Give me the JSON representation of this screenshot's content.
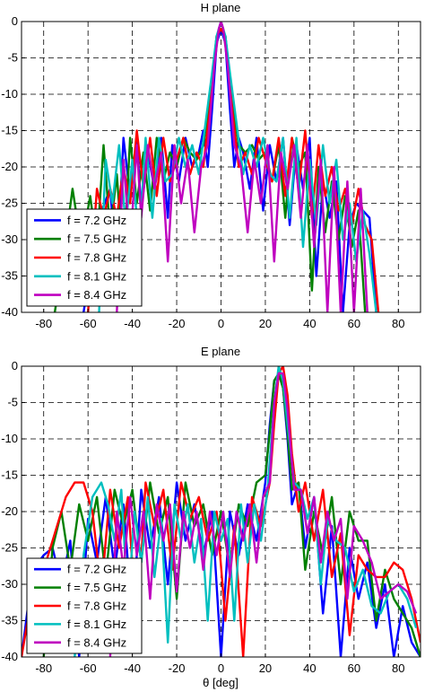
{
  "chart_data": [
    {
      "type": "line",
      "title": "H plane",
      "xlabel": "",
      "ylabel": "",
      "xlim": [
        -90,
        90
      ],
      "ylim": [
        -40,
        0
      ],
      "x_ticks": [
        -80,
        -60,
        -40,
        -20,
        0,
        20,
        40,
        60,
        80
      ],
      "x_tick_labels": [
        "-80",
        "-60",
        "-40",
        "-20",
        "0",
        "20",
        "40",
        "60",
        "80"
      ],
      "y_ticks": [
        0,
        -5,
        -10,
        -15,
        -20,
        -25,
        -30,
        -35,
        -40
      ],
      "y_tick_labels": [
        "0",
        "-5",
        "-10",
        "-15",
        "-20",
        "-25",
        "-30",
        "-35",
        "-40"
      ],
      "grid": true,
      "legend_position": "bottom-left",
      "series": [
        {
          "name": "f = 7.2 GHz",
          "color": "#0000ff",
          "x": [
            -62,
            -55,
            -50,
            -47,
            -44,
            -41,
            -38,
            -36,
            -33,
            -30,
            -27,
            -24,
            -22,
            -19,
            -16,
            -13,
            -10,
            -8,
            -6,
            -4,
            -2,
            0,
            2,
            4,
            6,
            8,
            10,
            13,
            16,
            19,
            22,
            25,
            28,
            31,
            34,
            37,
            40,
            43,
            46,
            49,
            52,
            55,
            58,
            61,
            64,
            67,
            70
          ],
          "y": [
            -40,
            -27,
            -23,
            -35,
            -16,
            -24,
            -16,
            -26,
            -18,
            -23,
            -16,
            -27,
            -17,
            -22,
            -16,
            -20,
            -18,
            -15,
            -20,
            -12,
            -3,
            -1,
            -3,
            -12,
            -20,
            -16,
            -18,
            -23,
            -16,
            -26,
            -17,
            -22,
            -16,
            -28,
            -17,
            -23,
            -16,
            -35,
            -22,
            -27,
            -22,
            -40,
            -28,
            -25,
            -26,
            -27,
            -40
          ]
        },
        {
          "name": "f = 7.5 GHz",
          "color": "#008000",
          "x": [
            -75,
            -70,
            -67,
            -63,
            -59,
            -56,
            -53,
            -50,
            -47,
            -44,
            -41,
            -38,
            -35,
            -32,
            -29,
            -26,
            -23,
            -20,
            -17,
            -14,
            -11,
            -8,
            -5,
            -2,
            0,
            2,
            5,
            8,
            11,
            14,
            17,
            20,
            23,
            26,
            29,
            32,
            35,
            38,
            41,
            44,
            47,
            50,
            53,
            56,
            59,
            62,
            65
          ],
          "y": [
            -40,
            -30,
            -23,
            -31,
            -24,
            -31,
            -17,
            -29,
            -21,
            -34,
            -16,
            -25,
            -18,
            -26,
            -16,
            -22,
            -18,
            -20,
            -16,
            -18,
            -19,
            -17,
            -11,
            -2,
            -1,
            -2,
            -11,
            -17,
            -18,
            -17,
            -19,
            -18,
            -22,
            -17,
            -27,
            -16,
            -20,
            -18,
            -37,
            -20,
            -29,
            -22,
            -30,
            -24,
            -31,
            -26,
            -40
          ]
        },
        {
          "name": "f = 7.8 GHz",
          "color": "#ff0000",
          "x": [
            -60,
            -56,
            -53,
            -50,
            -47,
            -44,
            -41,
            -38,
            -35,
            -32,
            -29,
            -26,
            -23,
            -20,
            -17,
            -14,
            -11,
            -8,
            -5,
            -2,
            0,
            2,
            5,
            8,
            11,
            14,
            17,
            20,
            23,
            26,
            29,
            32,
            35,
            38,
            41,
            44,
            47,
            50,
            53,
            56,
            59,
            62,
            65,
            68,
            71
          ],
          "y": [
            -40,
            -23,
            -27,
            -23,
            -27,
            -20,
            -25,
            -15,
            -23,
            -16,
            -24,
            -16,
            -22,
            -19,
            -16,
            -21,
            -18,
            -20,
            -12,
            -2,
            -1,
            -2,
            -12,
            -20,
            -18,
            -21,
            -16,
            -19,
            -22,
            -16,
            -24,
            -16,
            -23,
            -15,
            -27,
            -17,
            -24,
            -20,
            -26,
            -23,
            -28,
            -23,
            -28,
            -30,
            -40
          ]
        },
        {
          "name": "f = 8.1 GHz",
          "color": "#00bfbf",
          "x": [
            -55,
            -52,
            -49,
            -46,
            -43,
            -40,
            -37,
            -34,
            -31,
            -28,
            -25,
            -22,
            -19,
            -16,
            -13,
            -10,
            -7,
            -4,
            -2,
            0,
            2,
            4,
            7,
            10,
            13,
            16,
            19,
            22,
            25,
            28,
            31,
            34,
            37,
            40,
            43,
            46,
            49,
            52,
            55,
            58,
            61,
            64,
            67,
            70
          ],
          "y": [
            -40,
            -19,
            -25,
            -17,
            -28,
            -19,
            -31,
            -16,
            -27,
            -16,
            -22,
            -21,
            -16,
            -20,
            -17,
            -21,
            -14,
            -7,
            -2,
            0,
            -2,
            -7,
            -14,
            -21,
            -17,
            -20,
            -16,
            -21,
            -22,
            -16,
            -27,
            -16,
            -31,
            -19,
            -28,
            -17,
            -25,
            -19,
            -30,
            -25,
            -33,
            -26,
            -32,
            -40
          ]
        },
        {
          "name": "f = 8.4 GHz",
          "color": "#bf00bf",
          "x": [
            -47,
            -44,
            -41,
            -38,
            -36,
            -33,
            -30,
            -27,
            -24,
            -21,
            -18,
            -15,
            -12,
            -9,
            -6,
            -3,
            -1,
            0,
            1,
            3,
            6,
            9,
            12,
            15,
            18,
            21,
            24,
            27,
            30,
            33,
            36,
            39,
            42,
            45,
            48,
            51,
            54,
            57,
            60,
            63,
            66
          ],
          "y": [
            -40,
            -19,
            -31,
            -17,
            -27,
            -17,
            -23,
            -18,
            -33,
            -17,
            -25,
            -19,
            -29,
            -20,
            -17,
            -6,
            -1,
            0,
            -1,
            -6,
            -17,
            -20,
            -29,
            -19,
            -25,
            -17,
            -33,
            -18,
            -23,
            -17,
            -27,
            -17,
            -31,
            -19,
            -40,
            -20,
            -40,
            -22,
            -40,
            -23,
            -40
          ]
        }
      ]
    },
    {
      "type": "line",
      "title": "E plane",
      "xlabel": "θ [deg]",
      "ylabel": "",
      "xlim": [
        -90,
        90
      ],
      "ylim": [
        -40,
        0
      ],
      "x_ticks": [
        -80,
        -60,
        -40,
        -20,
        0,
        20,
        40,
        60,
        80
      ],
      "x_tick_labels": [
        "-80",
        "-60",
        "-40",
        "-20",
        "0",
        "20",
        "40",
        "60",
        "80"
      ],
      "y_ticks": [
        0,
        -5,
        -10,
        -15,
        -20,
        -25,
        -30,
        -35,
        -40
      ],
      "y_tick_labels": [
        "0",
        "-5",
        "-10",
        "-15",
        "-20",
        "-25",
        "-30",
        "-35",
        "-40"
      ],
      "grid": true,
      "legend_position": "bottom-left",
      "series": [
        {
          "name": "f = 7.2 GHz",
          "color": "#0000ff",
          "x": [
            -90,
            -85,
            -80,
            -76,
            -72,
            -68,
            -64,
            -60,
            -56,
            -52,
            -48,
            -44,
            -40,
            -36,
            -32,
            -28,
            -24,
            -20,
            -16,
            -12,
            -8,
            -4,
            0,
            4,
            8,
            12,
            16,
            20,
            22,
            24,
            26,
            28,
            30,
            32,
            35,
            38,
            42,
            46,
            50,
            54,
            58,
            62,
            66,
            70,
            74,
            78,
            82,
            86,
            90
          ],
          "y": [
            -40,
            -28,
            -26,
            -25,
            -30,
            -24,
            -40,
            -21,
            -27,
            -18,
            -28,
            -19,
            -35,
            -17,
            -25,
            -18,
            -30,
            -16,
            -24,
            -19,
            -26,
            -20,
            -40,
            -20,
            -26,
            -19,
            -24,
            -16,
            -8,
            -2,
            -1,
            -3,
            -10,
            -19,
            -16,
            -25,
            -18,
            -34,
            -22,
            -40,
            -25,
            -32,
            -27,
            -36,
            -30,
            -40,
            -33,
            -38,
            -40
          ]
        },
        {
          "name": "f = 7.5 GHz",
          "color": "#008000",
          "x": [
            -80,
            -76,
            -72,
            -68,
            -64,
            -60,
            -56,
            -52,
            -48,
            -44,
            -40,
            -36,
            -32,
            -28,
            -24,
            -20,
            -16,
            -12,
            -8,
            -4,
            0,
            4,
            8,
            12,
            16,
            20,
            22,
            24,
            26,
            28,
            30,
            32,
            35,
            38,
            42,
            46,
            50,
            54,
            58,
            62,
            66,
            70,
            74,
            78,
            82,
            86,
            90
          ],
          "y": [
            -40,
            -25,
            -20,
            -28,
            -19,
            -24,
            -18,
            -29,
            -17,
            -22,
            -17,
            -27,
            -16,
            -23,
            -18,
            -32,
            -16,
            -22,
            -19,
            -26,
            -20,
            -28,
            -19,
            -22,
            -16,
            -15,
            -9,
            -2,
            -1,
            -3,
            -9,
            -17,
            -16,
            -28,
            -20,
            -26,
            -18,
            -30,
            -20,
            -24,
            -24,
            -35,
            -28,
            -32,
            -34,
            -36,
            -40
          ]
        },
        {
          "name": "f = 7.8 GHz",
          "color": "#ff0000",
          "x": [
            -90,
            -85,
            -80,
            -75,
            -70,
            -66,
            -62,
            -58,
            -54,
            -50,
            -46,
            -42,
            -38,
            -34,
            -30,
            -26,
            -22,
            -18,
            -14,
            -10,
            -6,
            -2,
            2,
            6,
            10,
            14,
            18,
            22,
            24,
            26,
            28,
            30,
            32,
            35,
            38,
            42,
            46,
            50,
            54,
            58,
            62,
            66,
            70,
            74,
            78,
            82,
            86,
            90
          ],
          "y": [
            -40,
            -31,
            -28,
            -23,
            -18,
            -16,
            -16,
            -20,
            -31,
            -17,
            -25,
            -18,
            -37,
            -16,
            -22,
            -17,
            -28,
            -16,
            -21,
            -18,
            -24,
            -20,
            -35,
            -22,
            -40,
            -18,
            -22,
            -16,
            -8,
            -1,
            0,
            -4,
            -12,
            -20,
            -16,
            -24,
            -17,
            -29,
            -23,
            -37,
            -26,
            -28,
            -29,
            -29,
            -27,
            -28,
            -32,
            -38
          ]
        },
        {
          "name": "f = 8.1 GHz",
          "color": "#00bfbf",
          "x": [
            -66,
            -62,
            -58,
            -54,
            -51,
            -48,
            -45,
            -42,
            -39,
            -36,
            -33,
            -30,
            -27,
            -24,
            -21,
            -18,
            -15,
            -12,
            -9,
            -6,
            -3,
            0,
            3,
            6,
            9,
            12,
            15,
            18,
            21,
            24,
            26,
            28,
            30,
            33,
            36,
            39,
            42,
            45,
            48,
            52,
            56,
            60,
            64,
            68,
            72,
            76,
            80,
            84,
            88
          ],
          "y": [
            -40,
            -26,
            -18,
            -16,
            -19,
            -24,
            -17,
            -33,
            -20,
            -27,
            -18,
            -29,
            -21,
            -38,
            -19,
            -24,
            -19,
            -27,
            -21,
            -35,
            -20,
            -24,
            -21,
            -35,
            -19,
            -27,
            -19,
            -24,
            -17,
            -5,
            0,
            -2,
            -8,
            -16,
            -17,
            -21,
            -18,
            -30,
            -21,
            -24,
            -25,
            -31,
            -28,
            -33,
            -34,
            -31,
            -30,
            -32,
            -36
          ]
        },
        {
          "name": "f = 8.4 GHz",
          "color": "#bf00bf",
          "x": [
            -50,
            -47,
            -44,
            -41,
            -38,
            -35,
            -32,
            -29,
            -26,
            -23,
            -20,
            -17,
            -14,
            -11,
            -8,
            -5,
            -2,
            1,
            4,
            7,
            10,
            13,
            16,
            19,
            22,
            24,
            26,
            28,
            30,
            33,
            36,
            39,
            42,
            45,
            48,
            51,
            54,
            57,
            60,
            64,
            68,
            72,
            76,
            80,
            84,
            88
          ],
          "y": [
            -40,
            -20,
            -28,
            -18,
            -26,
            -20,
            -32,
            -19,
            -24,
            -19,
            -31,
            -20,
            -25,
            -20,
            -28,
            -20,
            -26,
            -20,
            -29,
            -20,
            -24,
            -19,
            -27,
            -18,
            -16,
            -5,
            -1,
            -1,
            -6,
            -17,
            -17,
            -23,
            -18,
            -27,
            -20,
            -24,
            -21,
            -32,
            -22,
            -24,
            -27,
            -32,
            -31,
            -30,
            -31,
            -34
          ]
        }
      ]
    }
  ]
}
